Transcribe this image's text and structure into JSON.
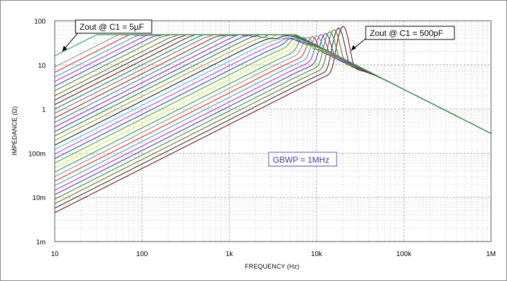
{
  "chart_data": {
    "type": "line",
    "xscale": "log",
    "yscale": "log",
    "xlabel": "FREQUENCY (Hz)",
    "ylabel": "IMPEDANCE (Ω)",
    "xlim": [
      10,
      1000000
    ],
    "ylim": [
      0.001,
      100
    ],
    "x_ticks": [
      {
        "value": 10,
        "label": "10"
      },
      {
        "value": 100,
        "label": "100"
      },
      {
        "value": 1000,
        "label": "1k"
      },
      {
        "value": 10000,
        "label": "10k"
      },
      {
        "value": 100000,
        "label": "100k"
      },
      {
        "value": 1000000,
        "label": "1M"
      }
    ],
    "y_ticks": [
      {
        "value": 100,
        "label": "100"
      },
      {
        "value": 10,
        "label": "10"
      },
      {
        "value": 1,
        "label": "1"
      },
      {
        "value": 0.1,
        "label": "100m"
      },
      {
        "value": 0.01,
        "label": "10m"
      },
      {
        "value": 0.001,
        "label": "1m"
      }
    ],
    "grid": true,
    "annotations": [
      {
        "text": "Zout @ C1 = 5µF",
        "points_to": {
          "x": 10,
          "y": 16
        }
      },
      {
        "text": "Zout @ C1 = 500pF",
        "points_to": {
          "x": 20000,
          "y": 90
        }
      },
      {
        "text": "GBWP = 1MHz"
      }
    ],
    "series_colors": [
      "#6b1414",
      "#303030",
      "#6d6d1a",
      "#3b8a3b",
      "#3f3fa8",
      "#b42eb4",
      "#38a6a6",
      "#d12e2e",
      "#8f8f8f",
      "#2d9e4c",
      "#e8e83a",
      "#3fa93f",
      "#3a3ab5",
      "#b846b8",
      "#41bcd6",
      "#1c1c1c",
      "#9b9b2a",
      "#1b7a3c",
      "#3d3d8f",
      "#9d1e9d",
      "#2e8a8a",
      "#a91e1e",
      "#707070",
      "#157a56"
    ],
    "series": [
      {
        "low_freq_x": 10,
        "low_freq_y": 0.0045,
        "peak_x": 20000,
        "peak_y": 90
      },
      {
        "low_freq_x": 10,
        "low_freq_y": 0.0057,
        "peak_x": 17800,
        "peak_y": 82
      },
      {
        "low_freq_x": 10,
        "low_freq_y": 0.0072,
        "peak_x": 15800,
        "peak_y": 75
      },
      {
        "low_freq_x": 10,
        "low_freq_y": 0.0091,
        "peak_x": 14100,
        "peak_y": 68
      },
      {
        "low_freq_x": 10,
        "low_freq_y": 0.0115,
        "peak_x": 12600,
        "peak_y": 62
      },
      {
        "low_freq_x": 10,
        "low_freq_y": 0.0145,
        "peak_x": 11200,
        "peak_y": 58
      },
      {
        "low_freq_x": 10,
        "low_freq_y": 0.0184,
        "peak_x": 10000,
        "peak_y": 55
      },
      {
        "low_freq_x": 10,
        "low_freq_y": 0.0233,
        "peak_x": 8900,
        "peak_y": 53
      },
      {
        "low_freq_x": 10,
        "low_freq_y": 0.0295,
        "peak_x": 7900,
        "peak_y": 51
      },
      {
        "low_freq_x": 10,
        "low_freq_y": 0.0373,
        "peak_x": 7000,
        "peak_y": 50
      },
      {
        "low_freq_x": 10,
        "low_freq_y": 0.0472,
        "peak_x": 6300,
        "peak_y": 49
      },
      {
        "low_freq_x": 10,
        "low_freq_y": 0.0598,
        "peak_x": 5600,
        "peak_y": 48
      },
      {
        "low_freq_x": 10,
        "low_freq_y": 0.0757,
        "peak_x": 5000,
        "peak_y": 48
      },
      {
        "low_freq_x": 10,
        "low_freq_y": 0.0958,
        "peak_x": 4500,
        "peak_y": 48
      },
      {
        "low_freq_x": 10,
        "low_freq_y": 0.121,
        "peak_x": 4000,
        "peak_y": 48
      },
      {
        "low_freq_x": 10,
        "low_freq_y": 0.153,
        "peak_x": 3500,
        "peak_y": 48
      },
      {
        "low_freq_x": 10,
        "low_freq_y": 0.194,
        "peak_x": 3000,
        "peak_y": 48
      },
      {
        "low_freq_x": 10,
        "low_freq_y": 0.246,
        "peak_x": 2500,
        "peak_y": 48
      },
      {
        "low_freq_x": 10,
        "low_freq_y": 0.311,
        "peak_x": 2000,
        "peak_y": 48
      },
      {
        "low_freq_x": 10,
        "low_freq_y": 0.394,
        "peak_x": 1600,
        "peak_y": 48
      },
      {
        "low_freq_x": 10,
        "low_freq_y": 0.5,
        "peak_x": 1200,
        "peak_y": 48
      },
      {
        "low_freq_x": 10,
        "low_freq_y": 0.63,
        "peak_x": 900,
        "peak_y": 48
      },
      {
        "low_freq_x": 10,
        "low_freq_y": 0.8,
        "peak_x": 650,
        "peak_y": 48
      },
      {
        "low_freq_x": 10,
        "low_freq_y": 1.0,
        "peak_x": 500,
        "peak_y": 48
      },
      {
        "low_freq_x": 10,
        "low_freq_y": 1.26,
        "peak_x": 400,
        "peak_y": 48
      },
      {
        "low_freq_x": 10,
        "low_freq_y": 1.6,
        "peak_x": 320,
        "peak_y": 48
      },
      {
        "low_freq_x": 10,
        "low_freq_y": 2.0,
        "peak_x": 260,
        "peak_y": 48
      },
      {
        "low_freq_x": 10,
        "low_freq_y": 2.6,
        "peak_x": 210,
        "peak_y": 48
      },
      {
        "low_freq_x": 10,
        "low_freq_y": 3.3,
        "peak_x": 170,
        "peak_y": 48
      },
      {
        "low_freq_x": 10,
        "low_freq_y": 4.2,
        "peak_x": 140,
        "peak_y": 48
      },
      {
        "low_freq_x": 10,
        "low_freq_y": 5.3,
        "peak_x": 110,
        "peak_y": 48
      },
      {
        "low_freq_x": 10,
        "low_freq_y": 6.8,
        "peak_x": 90,
        "peak_y": 48
      },
      {
        "low_freq_x": 10,
        "low_freq_y": 9.0,
        "peak_x": 70,
        "peak_y": 48
      },
      {
        "low_freq_x": 10,
        "low_freq_y": 16.0,
        "peak_x": 50,
        "peak_y": 48
      }
    ],
    "high_freq_asymptote": [
      {
        "x": 100000,
        "y": 2.8
      },
      {
        "x": 1000000,
        "y": 0.16
      }
    ]
  }
}
